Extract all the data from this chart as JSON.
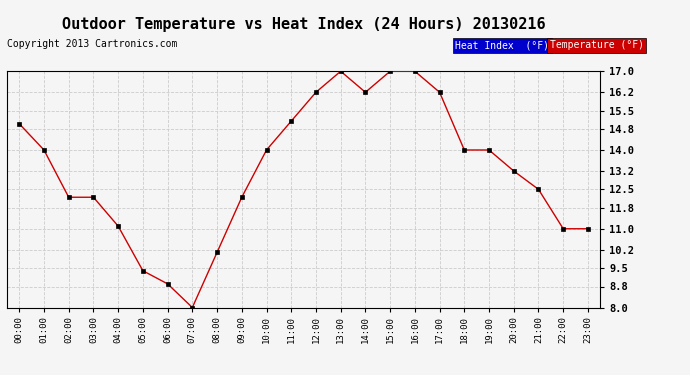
{
  "title": "Outdoor Temperature vs Heat Index (24 Hours) 20130216",
  "copyright": "Copyright 2013 Cartronics.com",
  "x_labels": [
    "00:00",
    "01:00",
    "02:00",
    "03:00",
    "04:00",
    "05:00",
    "06:00",
    "07:00",
    "08:00",
    "09:00",
    "10:00",
    "11:00",
    "12:00",
    "13:00",
    "14:00",
    "15:00",
    "16:00",
    "17:00",
    "18:00",
    "19:00",
    "20:00",
    "21:00",
    "22:00",
    "23:00"
  ],
  "temperature": [
    15.0,
    14.0,
    12.2,
    12.2,
    11.1,
    9.4,
    8.9,
    8.0,
    10.1,
    12.2,
    14.0,
    15.1,
    16.2,
    17.0,
    16.2,
    17.0,
    17.0,
    16.2,
    14.0,
    14.0,
    13.2,
    12.5,
    11.0,
    11.0
  ],
  "ylim": [
    8.0,
    17.0
  ],
  "yticks": [
    8.0,
    8.8,
    9.5,
    10.2,
    11.0,
    11.8,
    12.5,
    13.2,
    14.0,
    14.8,
    15.5,
    16.2,
    17.0
  ],
  "bg_color": "#f5f5f5",
  "line_color": "#cc0000",
  "marker_color": "#000000",
  "grid_color": "#cccccc",
  "legend_heat_bg": "#0000cc",
  "legend_temp_bg": "#cc0000",
  "legend_text_color": "#ffffff",
  "title_fontsize": 11,
  "copyright_fontsize": 7
}
